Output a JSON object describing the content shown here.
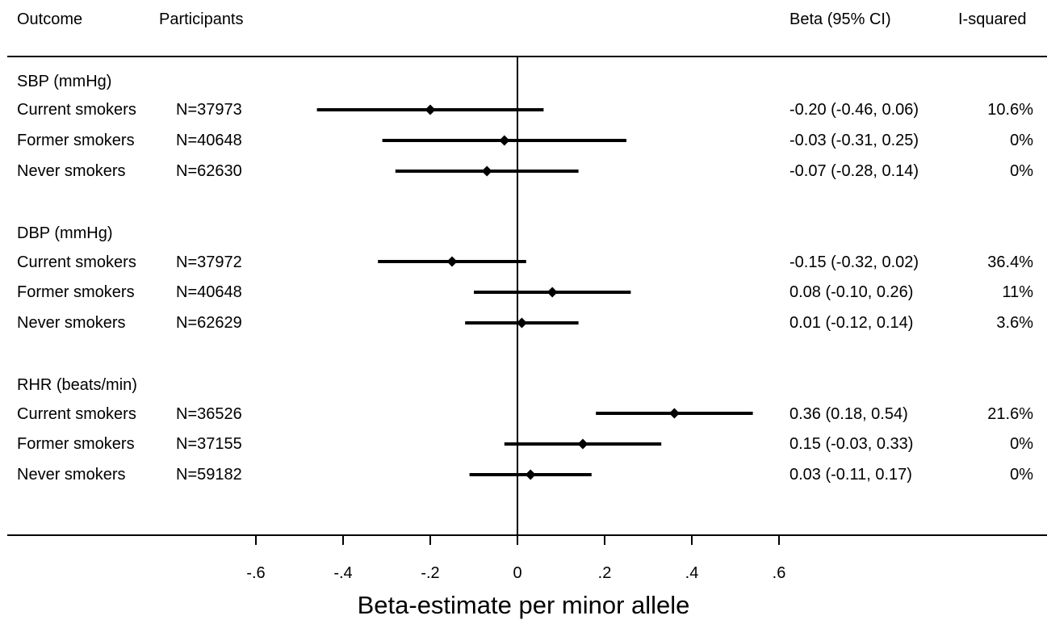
{
  "header": {
    "outcome": "Outcome",
    "participants": "Participants",
    "beta_ci": "Beta (95% CI)",
    "i_squared": "I-squared"
  },
  "groups": [
    {
      "title": "SBP (mmHg)",
      "rows": [
        {
          "label": "Current smokers",
          "n": "N=37973",
          "ci_text": "-0.20 (-0.46, 0.06)",
          "i2": "10.6%"
        },
        {
          "label": "Former smokers",
          "n": "N=40648",
          "ci_text": "-0.03 (-0.31, 0.25)",
          "i2": "0%"
        },
        {
          "label": "Never smokers",
          "n": "N=62630",
          "ci_text": "-0.07 (-0.28, 0.14)",
          "i2": "0%"
        }
      ]
    },
    {
      "title": "DBP (mmHg)",
      "rows": [
        {
          "label": "Current smokers",
          "n": "N=37972",
          "ci_text": "-0.15 (-0.32, 0.02)",
          "i2": "36.4%"
        },
        {
          "label": "Former smokers",
          "n": "N=40648",
          "ci_text": "0.08 (-0.10, 0.26)",
          "i2": "11%"
        },
        {
          "label": "Never smokers",
          "n": "N=62629",
          "ci_text": "0.01 (-0.12, 0.14)",
          "i2": "3.6%"
        }
      ]
    },
    {
      "title": "RHR (beats/min)",
      "rows": [
        {
          "label": "Current smokers",
          "n": "N=36526",
          "ci_text": "0.36 (0.18, 0.54)",
          "i2": "21.6%"
        },
        {
          "label": "Former smokers",
          "n": "N=37155",
          "ci_text": "0.15 (-0.03, 0.33)",
          "i2": "0%"
        },
        {
          "label": "Never smokers",
          "n": "N=59182",
          "ci_text": "0.03 (-0.11, 0.17)",
          "i2": "0%"
        }
      ]
    }
  ],
  "chart_data": {
    "type": "forest",
    "xlabel": "Beta-estimate per minor allele",
    "xlim": [
      -0.6,
      0.6
    ],
    "x_ticks": [
      -0.6,
      -0.4,
      -0.2,
      0,
      0.2,
      0.4,
      0.6
    ],
    "x_tick_labels": [
      "-.6",
      "-.4",
      "-.2",
      "0",
      ".2",
      ".4",
      ".6"
    ],
    "reference_line": 0,
    "rows": [
      {
        "group": "SBP (mmHg)",
        "label": "Current smokers",
        "beta": -0.2,
        "lower": -0.46,
        "upper": 0.06
      },
      {
        "group": "SBP (mmHg)",
        "label": "Former smokers",
        "beta": -0.03,
        "lower": -0.31,
        "upper": 0.25
      },
      {
        "group": "SBP (mmHg)",
        "label": "Never smokers",
        "beta": -0.07,
        "lower": -0.28,
        "upper": 0.14
      },
      {
        "group": "DBP (mmHg)",
        "label": "Current smokers",
        "beta": -0.15,
        "lower": -0.32,
        "upper": 0.02
      },
      {
        "group": "DBP (mmHg)",
        "label": "Former smokers",
        "beta": 0.08,
        "lower": -0.1,
        "upper": 0.26
      },
      {
        "group": "DBP (mmHg)",
        "label": "Never smokers",
        "beta": 0.01,
        "lower": -0.12,
        "upper": 0.14
      },
      {
        "group": "RHR (beats/min)",
        "label": "Current smokers",
        "beta": 0.36,
        "lower": 0.18,
        "upper": 0.54
      },
      {
        "group": "RHR (beats/min)",
        "label": "Former smokers",
        "beta": 0.15,
        "lower": -0.03,
        "upper": 0.33
      },
      {
        "group": "RHR (beats/min)",
        "label": "Never smokers",
        "beta": 0.03,
        "lower": -0.11,
        "upper": 0.17
      }
    ]
  }
}
